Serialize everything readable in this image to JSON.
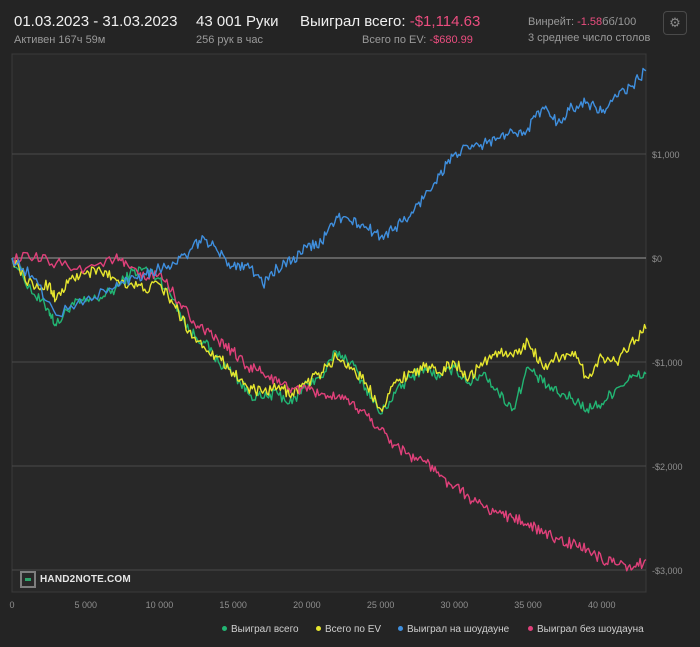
{
  "header": {
    "date_range": "01.03.2023 - 31.03.2023",
    "active": "Активен 167ч 59м",
    "hands": "43 001 Руки",
    "hands_per_hour": "256 рук в час",
    "won_total_label": "Выиграл всего:",
    "won_total_value": "-$1,114.63",
    "ev_total_label": "Всего по EV:",
    "ev_total_value": "-$680.99",
    "winrate_label": "Винрейт:",
    "winrate_value": "-1.58",
    "winrate_unit": "бб/100",
    "tables": "3 среднее число столов"
  },
  "logo_text": "HAND2NOTE.COM",
  "icons": {
    "settings": "gear-icon",
    "logo": "hand2note-logo-icon"
  },
  "chart_data": {
    "type": "line",
    "xlabel": "",
    "ylabel": "",
    "xlim": [
      0,
      43001
    ],
    "ylim": [
      -3000,
      1800
    ],
    "x_ticks": [
      0,
      5000,
      10000,
      15000,
      20000,
      25000,
      30000,
      35000,
      40000
    ],
    "x_tick_labels": [
      "0",
      "5 000",
      "10 000",
      "15 000",
      "20 000",
      "25 000",
      "30 000",
      "35 000",
      "40 000"
    ],
    "y_ticks": [
      1000,
      0,
      -1000,
      -2000,
      -3000
    ],
    "y_tick_labels": [
      "$1,000",
      "$0",
      "-$1,000",
      "-$2,000",
      "-$3,000"
    ],
    "grid": "horizontal",
    "legend_position": "bottom-right",
    "series": [
      {
        "name": "Выиграл всего",
        "color": "#22b573",
        "x": [
          0,
          1500,
          2500,
          3000,
          4000,
          5000,
          6000,
          7000,
          8000,
          9000,
          10000,
          11000,
          12000,
          13000,
          14000,
          15000,
          16000,
          17000,
          18000,
          19000,
          20000,
          21000,
          22000,
          23000,
          24000,
          25000,
          26000,
          27000,
          28000,
          29000,
          30000,
          31000,
          32000,
          33000,
          34000,
          35000,
          36000,
          37000,
          38000,
          39000,
          40000,
          41000,
          42000,
          43001
        ],
        "values": [
          0,
          -350,
          -500,
          -650,
          -450,
          -420,
          -380,
          -300,
          -150,
          -100,
          -200,
          -400,
          -700,
          -800,
          -1000,
          -1100,
          -1300,
          -1350,
          -1300,
          -1400,
          -1200,
          -1150,
          -900,
          -1000,
          -1250,
          -1500,
          -1300,
          -1150,
          -1050,
          -1150,
          -1050,
          -1200,
          -1100,
          -1300,
          -1450,
          -1050,
          -1200,
          -1300,
          -1350,
          -1450,
          -1400,
          -1250,
          -1150,
          -1114.63
        ]
      },
      {
        "name": "Всего по EV",
        "color": "#e6e62e",
        "x": [
          0,
          1500,
          2500,
          3000,
          4000,
          5000,
          6000,
          7000,
          8000,
          9000,
          10000,
          11000,
          12000,
          13000,
          14000,
          15000,
          16000,
          17000,
          18000,
          19000,
          20000,
          21000,
          22000,
          23000,
          24000,
          25000,
          26000,
          27000,
          28000,
          29000,
          30000,
          31000,
          32000,
          33000,
          34000,
          35000,
          36000,
          37000,
          38000,
          39000,
          40000,
          41000,
          42000,
          43001
        ],
        "values": [
          0,
          -300,
          -250,
          -400,
          -200,
          -150,
          -120,
          -200,
          -250,
          -300,
          -250,
          -450,
          -700,
          -850,
          -950,
          -1100,
          -1250,
          -1300,
          -1250,
          -1300,
          -1200,
          -1100,
          -950,
          -1050,
          -1200,
          -1450,
          -1200,
          -1100,
          -1050,
          -1100,
          -1000,
          -1150,
          -1000,
          -900,
          -950,
          -800,
          -1050,
          -950,
          -900,
          -1150,
          -950,
          -1000,
          -800,
          -680.99
        ]
      },
      {
        "name": "Выиграл на шоудауне",
        "color": "#3f8fde",
        "x": [
          0,
          1500,
          3000,
          5000,
          7000,
          8000,
          9000,
          10000,
          11000,
          12000,
          13000,
          14000,
          15000,
          16000,
          17000,
          18000,
          19000,
          20000,
          21000,
          22000,
          23000,
          24000,
          25000,
          26000,
          27000,
          28000,
          29000,
          30000,
          31000,
          32000,
          33000,
          34000,
          35000,
          36000,
          37000,
          38000,
          39000,
          40000,
          41000,
          42000,
          43001
        ],
        "values": [
          0,
          -200,
          -550,
          -400,
          -280,
          -200,
          -150,
          -100,
          -50,
          50,
          200,
          50,
          -80,
          -50,
          -250,
          -100,
          -30,
          100,
          150,
          400,
          350,
          300,
          200,
          300,
          400,
          600,
          800,
          1000,
          1050,
          1100,
          1150,
          1200,
          1250,
          1450,
          1300,
          1450,
          1500,
          1400,
          1550,
          1650,
          1800
        ]
      },
      {
        "name": "Выиграл без шоудауна",
        "color": "#e0407a",
        "x": [
          0,
          1500,
          3000,
          5000,
          7000,
          8000,
          9000,
          10000,
          11000,
          12000,
          13000,
          14000,
          15000,
          16000,
          17000,
          18000,
          19000,
          20000,
          21000,
          22000,
          23000,
          24000,
          25000,
          26000,
          27000,
          28000,
          29000,
          30000,
          31000,
          32000,
          33000,
          34000,
          35000,
          36000,
          37000,
          38000,
          39000,
          40000,
          41000,
          42000,
          43001
        ],
        "values": [
          0,
          0,
          -50,
          -100,
          0,
          -100,
          -200,
          -150,
          -350,
          -550,
          -700,
          -800,
          -900,
          -1050,
          -1100,
          -1200,
          -1250,
          -1280,
          -1300,
          -1350,
          -1400,
          -1500,
          -1650,
          -1800,
          -1900,
          -1950,
          -2100,
          -2200,
          -2300,
          -2400,
          -2450,
          -2500,
          -2550,
          -2650,
          -2700,
          -2750,
          -2800,
          -2900,
          -2950,
          -3000,
          -2900
        ]
      }
    ]
  }
}
